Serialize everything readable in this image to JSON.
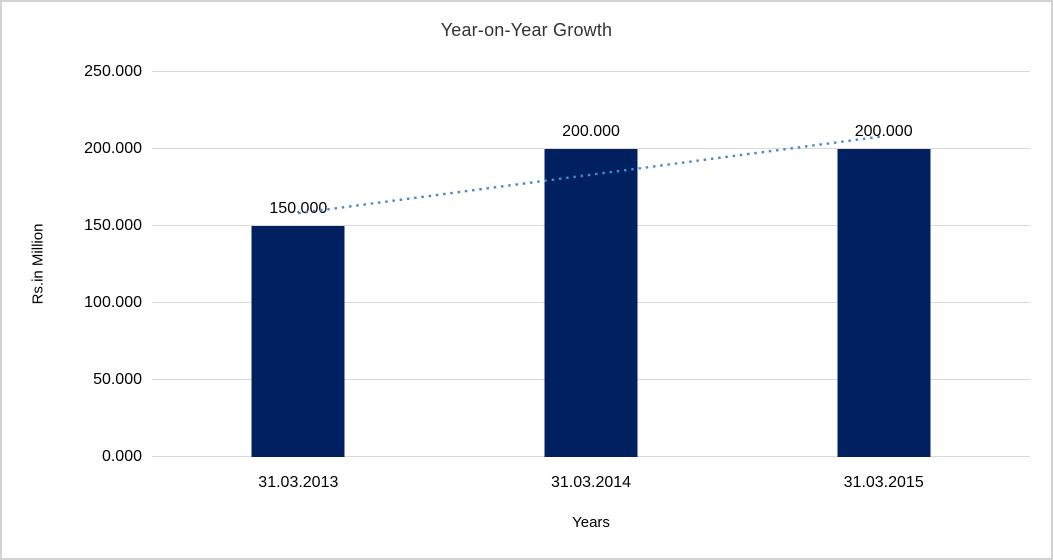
{
  "chart_data": {
    "type": "bar",
    "title": "Year-on-Year Growth",
    "xlabel": "Years",
    "ylabel": "Rs.in Million",
    "categories": [
      "31.03.2013",
      "31.03.2014",
      "31.03.2015"
    ],
    "values": [
      150,
      200,
      200
    ],
    "data_labels": [
      "150.000",
      "200.000",
      "200.000"
    ],
    "y_ticks": [
      "0.000",
      "50.000",
      "100.000",
      "150.000",
      "200.000",
      "250.000"
    ],
    "ylim": [
      0,
      250
    ],
    "grid": true,
    "legend_position": "none",
    "bar_color": "#002060",
    "gridline_color": "#d9d9d9",
    "trendline": {
      "type": "linear",
      "style": "dotted",
      "color": "#4e87c8",
      "start_value": 158.3,
      "end_value": 208.3
    }
  }
}
